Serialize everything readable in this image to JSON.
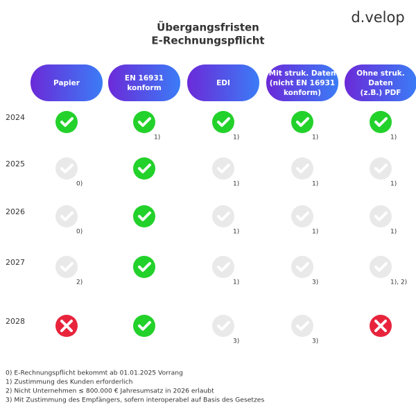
{
  "logo": "d.velop",
  "title": [
    "Übergangsfristen",
    "E-Rechnungspflicht"
  ],
  "columns": [
    [
      "Papier"
    ],
    [
      "EN 16931",
      "konform"
    ],
    [
      "EDI"
    ],
    [
      "Mit struk. Daten",
      "(nicht EN 16931",
      "konform)"
    ],
    [
      "Ohne struk.",
      "Daten",
      "(z.B.) PDF"
    ]
  ],
  "rows": [
    {
      "year": "2024",
      "cells": [
        {
          "status": "green",
          "note": null
        },
        {
          "status": "green",
          "note": "1)"
        },
        {
          "status": "green",
          "note": "1)"
        },
        {
          "status": "green",
          "note": "1)"
        },
        {
          "status": "green",
          "note": "1)"
        }
      ]
    },
    {
      "year": "2025",
      "cells": [
        {
          "status": "gray",
          "note": "0)"
        },
        {
          "status": "green",
          "note": null
        },
        {
          "status": "gray",
          "note": "1)"
        },
        {
          "status": "gray",
          "note": "1)"
        },
        {
          "status": "gray",
          "note": "1)"
        }
      ]
    },
    {
      "year": "2026",
      "cells": [
        {
          "status": "gray",
          "note": "0)"
        },
        {
          "status": "green",
          "note": null
        },
        {
          "status": "gray",
          "note": "1)"
        },
        {
          "status": "gray",
          "note": "1)"
        },
        {
          "status": "gray",
          "note": "1)"
        }
      ]
    },
    {
      "year": "2027",
      "cells": [
        {
          "status": "gray",
          "note": "2)"
        },
        {
          "status": "green",
          "note": null
        },
        {
          "status": "gray",
          "note": "1)"
        },
        {
          "status": "gray",
          "note": "3)"
        },
        {
          "status": "gray",
          "note": "1), 2)"
        }
      ]
    },
    {
      "year": "2028",
      "cells": [
        {
          "status": "red",
          "note": null
        },
        {
          "status": "green",
          "note": null
        },
        {
          "status": "gray",
          "note": "3)"
        },
        {
          "status": "gray",
          "note": "3)"
        },
        {
          "status": "red",
          "note": null
        }
      ]
    }
  ],
  "footnotes": [
    "0) E-Rechnungspflicht bekommt ab 01.01.2025 Vorrang",
    "1) Zustimmung des Kunden erforderlich",
    "2) Nicht Unternehmen ≤ 800.000 € Jahresumsatz in 2026 erlaubt",
    "3) Mit Zustimmung des Empfängers, sofern interoperabel auf Basis des Gesetzes"
  ]
}
